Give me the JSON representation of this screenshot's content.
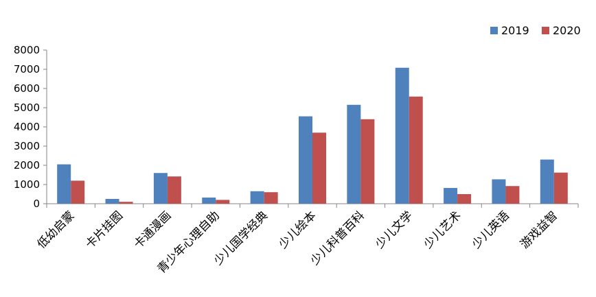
{
  "chart_data": {
    "type": "bar",
    "title": "",
    "xlabel": "",
    "ylabel": "",
    "ylim": [
      0,
      8000
    ],
    "yticks": [
      0,
      1000,
      2000,
      3000,
      4000,
      5000,
      6000,
      7000,
      8000
    ],
    "grid": false,
    "legend_position": "top-right",
    "categories": [
      "低幼启蒙",
      "卡片挂图",
      "卡通漫画",
      "青少年心理自助",
      "少儿国学经典",
      "少儿绘本",
      "少儿科普百科",
      "少儿文学",
      "少儿艺术",
      "少儿英语",
      "游戏益智"
    ],
    "series": [
      {
        "name": "2019",
        "color": "#4f81bd",
        "values": [
          2050,
          250,
          1600,
          320,
          650,
          4550,
          5150,
          7080,
          820,
          1270,
          2300
        ]
      },
      {
        "name": "2020",
        "color": "#c0504d",
        "values": [
          1200,
          100,
          1420,
          200,
          600,
          3700,
          4400,
          5580,
          500,
          920,
          1620
        ]
      }
    ]
  }
}
